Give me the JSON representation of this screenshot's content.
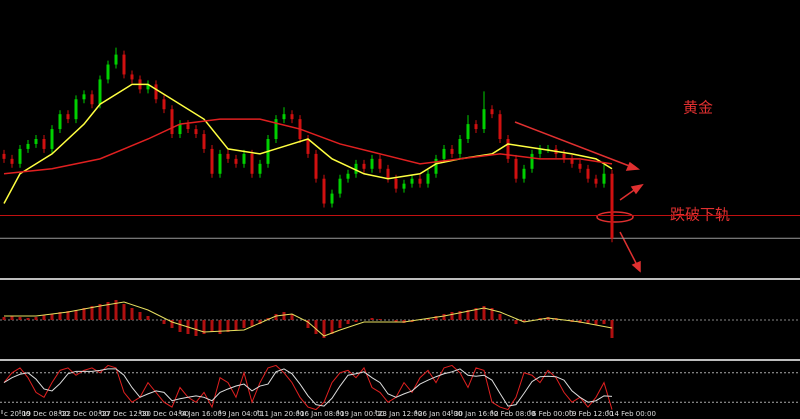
{
  "chart_data": [
    {
      "type": "candlestick",
      "up_color": "#00d000",
      "down_color": "#d01010",
      "xlim": [
        -0.5,
        99.5
      ],
      "ylim": [
        0,
        280
      ],
      "ohlc": [
        [
          125,
          129,
          116,
          120
        ],
        [
          120,
          124,
          111,
          115
        ],
        [
          115,
          134,
          111,
          130
        ],
        [
          130,
          139,
          126,
          135
        ],
        [
          135,
          144,
          131,
          140
        ],
        [
          140,
          144,
          126,
          130
        ],
        [
          130,
          154,
          126,
          150
        ],
        [
          150,
          169,
          146,
          165
        ],
        [
          165,
          169,
          156,
          160
        ],
        [
          160,
          184,
          156,
          180
        ],
        [
          180,
          189,
          176,
          185
        ],
        [
          185,
          189,
          171,
          175
        ],
        [
          175,
          204,
          171,
          200
        ],
        [
          200,
          219,
          196,
          215
        ],
        [
          215,
          232,
          211,
          225
        ],
        [
          225,
          229,
          201,
          205
        ],
        [
          205,
          209,
          196,
          200
        ],
        [
          200,
          204,
          186,
          190
        ],
        [
          190,
          199,
          186,
          195
        ],
        [
          195,
          199,
          176,
          180
        ],
        [
          180,
          184,
          166,
          170
        ],
        [
          170,
          174,
          141,
          145
        ],
        [
          145,
          159,
          141,
          155
        ],
        [
          155,
          159,
          146,
          150
        ],
        [
          150,
          154,
          141,
          145
        ],
        [
          145,
          149,
          126,
          130
        ],
        [
          130,
          134,
          101,
          105
        ],
        [
          105,
          129,
          101,
          125
        ],
        [
          125,
          129,
          116,
          120
        ],
        [
          120,
          124,
          111,
          115
        ],
        [
          115,
          129,
          111,
          125
        ],
        [
          125,
          129,
          101,
          105
        ],
        [
          105,
          119,
          101,
          115
        ],
        [
          115,
          144,
          111,
          140
        ],
        [
          140,
          164,
          136,
          160
        ],
        [
          160,
          172,
          156,
          165
        ],
        [
          165,
          169,
          156,
          160
        ],
        [
          160,
          164,
          136,
          140
        ],
        [
          140,
          144,
          121,
          125
        ],
        [
          125,
          129,
          96,
          100
        ],
        [
          100,
          104,
          71,
          75
        ],
        [
          75,
          89,
          71,
          85
        ],
        [
          85,
          104,
          81,
          100
        ],
        [
          100,
          109,
          96,
          105
        ],
        [
          105,
          119,
          101,
          115
        ],
        [
          115,
          119,
          106,
          110
        ],
        [
          110,
          124,
          106,
          120
        ],
        [
          120,
          124,
          106,
          110
        ],
        [
          110,
          114,
          96,
          100
        ],
        [
          100,
          104,
          86,
          90
        ],
        [
          90,
          99,
          86,
          95
        ],
        [
          95,
          104,
          91,
          100
        ],
        [
          100,
          104,
          91,
          95
        ],
        [
          95,
          109,
          91,
          105
        ],
        [
          105,
          124,
          101,
          120
        ],
        [
          120,
          134,
          116,
          130
        ],
        [
          130,
          134,
          121,
          125
        ],
        [
          125,
          144,
          121,
          140
        ],
        [
          140,
          164,
          136,
          155
        ],
        [
          155,
          159,
          146,
          150
        ],
        [
          150,
          188,
          146,
          170
        ],
        [
          170,
          174,
          161,
          165
        ],
        [
          165,
          169,
          136,
          140
        ],
        [
          140,
          144,
          116,
          120
        ],
        [
          120,
          124,
          96,
          100
        ],
        [
          100,
          114,
          96,
          110
        ],
        [
          110,
          129,
          106,
          125
        ],
        [
          125,
          134,
          121,
          130
        ],
        [
          130,
          134,
          126,
          130
        ],
        [
          130,
          134,
          121,
          125
        ],
        [
          125,
          129,
          116,
          120
        ],
        [
          120,
          124,
          111,
          115
        ],
        [
          115,
          119,
          106,
          110
        ],
        [
          110,
          114,
          96,
          100
        ],
        [
          100,
          104,
          91,
          95
        ],
        [
          95,
          114,
          91,
          105
        ],
        [
          105,
          109,
          36,
          40
        ]
      ],
      "lines": [
        {
          "color": "#ffff40",
          "x": [
            0,
            2,
            6,
            10,
            12,
            16,
            18,
            21,
            25,
            28,
            32,
            36,
            38,
            41,
            45,
            48,
            52,
            54,
            57,
            61,
            63,
            67,
            71,
            74,
            76
          ],
          "values": [
            75,
            105,
            125,
            155,
            175,
            195,
            195,
            180,
            160,
            130,
            125,
            135,
            140,
            120,
            105,
            100,
            105,
            115,
            120,
            125,
            135,
            130,
            125,
            120,
            110
          ]
        },
        {
          "color": "#e02020",
          "x": [
            0,
            6,
            12,
            18,
            22,
            27,
            32,
            37,
            42,
            47,
            52,
            57,
            62,
            67,
            72,
            76
          ],
          "values": [
            105,
            110,
            120,
            140,
            155,
            160,
            160,
            150,
            135,
            125,
            115,
            120,
            125,
            120,
            120,
            115
          ]
        }
      ],
      "levels": [
        {
          "color": "#c01010",
          "value": 63
        },
        {
          "color": "#9a9a9a",
          "value": 40
        }
      ],
      "annotations": [
        "黄金",
        "跌破下轨"
      ]
    },
    {
      "type": "macd",
      "color": "#b01010",
      "xlim": [
        -0.5,
        99.5
      ],
      "ylim": [
        -38,
        37
      ],
      "levels": [
        0
      ],
      "values": [
        3,
        4,
        3,
        2,
        3,
        5,
        6,
        8,
        9,
        10,
        12,
        14,
        16,
        18,
        20,
        16,
        12,
        8,
        4,
        0,
        -4,
        -8,
        -12,
        -14,
        -16,
        -14,
        -12,
        -14,
        -12,
        -10,
        -8,
        -6,
        -4,
        2,
        6,
        8,
        6,
        0,
        -8,
        -14,
        -18,
        -14,
        -8,
        -4,
        -2,
        0,
        2,
        1,
        0,
        -2,
        -3,
        -2,
        0,
        2,
        4,
        6,
        8,
        9,
        10,
        12,
        14,
        12,
        6,
        0,
        -4,
        -2,
        0,
        2,
        3,
        2,
        0,
        -2,
        -3,
        -4,
        -5,
        -4,
        -18
      ],
      "signal": {
        "color": "#e8e060",
        "x": [
          0,
          4,
          8,
          12,
          15,
          18,
          21,
          25,
          30,
          34,
          36,
          38,
          40,
          42,
          45,
          50,
          55,
          60,
          62,
          65,
          68,
          72,
          76
        ],
        "values": [
          4,
          4,
          8,
          14,
          18,
          10,
          -2,
          -12,
          -10,
          4,
          6,
          -2,
          -16,
          -10,
          -2,
          -2,
          4,
          12,
          8,
          -2,
          2,
          -2,
          -8
        ]
      }
    },
    {
      "type": "stochastic",
      "xlim": [
        -0.5,
        99.5
      ],
      "ylim": [
        0,
        100
      ],
      "levels": [
        80,
        20
      ],
      "series": [
        {
          "color": "#e02020",
          "values": [
            60,
            80,
            90,
            70,
            40,
            30,
            60,
            85,
            90,
            75,
            85,
            90,
            80,
            95,
            90,
            40,
            20,
            30,
            60,
            40,
            20,
            10,
            50,
            30,
            20,
            40,
            10,
            70,
            60,
            30,
            80,
            20,
            60,
            90,
            95,
            80,
            60,
            30,
            10,
            5,
            20,
            60,
            80,
            85,
            70,
            90,
            50,
            40,
            20,
            30,
            60,
            40,
            70,
            85,
            60,
            90,
            95,
            80,
            50,
            90,
            85,
            20,
            10,
            5,
            30,
            80,
            75,
            60,
            85,
            70,
            40,
            20,
            30,
            10,
            30,
            60,
            5
          ]
        },
        {
          "color": "#dddddd",
          "values": [
            60,
            70,
            77,
            80,
            67,
            47,
            43,
            58,
            78,
            83,
            83,
            83,
            85,
            88,
            88,
            75,
            50,
            30,
            37,
            43,
            40,
            23,
            27,
            30,
            33,
            30,
            23,
            40,
            47,
            53,
            57,
            43,
            53,
            57,
            82,
            88,
            78,
            57,
            33,
            15,
            12,
            28,
            53,
            75,
            78,
            82,
            70,
            60,
            37,
            30,
            37,
            43,
            57,
            65,
            72,
            78,
            82,
            88,
            75,
            73,
            75,
            65,
            38,
            12,
            15,
            38,
            62,
            72,
            73,
            72,
            65,
            43,
            30,
            20,
            23,
            33,
            32
          ]
        }
      ],
      "xticks": [
        {
          "value": -0.25,
          "label": "c 20:00"
        },
        {
          "value": 2,
          "label": "19 Dec 08:00"
        },
        {
          "value": 7,
          "label": "22 Dec 00:00"
        },
        {
          "value": 12,
          "label": "27 Dec 12:00"
        },
        {
          "value": 17,
          "label": "30 Dec 04:00"
        },
        {
          "value": 22,
          "label": "4 Jan 16:00"
        },
        {
          "value": 27,
          "label": "9 Jan 04:00"
        },
        {
          "value": 31.75,
          "label": "11 Jan 20:00"
        },
        {
          "value": 36.75,
          "label": "16 Jan 08:00"
        },
        {
          "value": 41.75,
          "label": "19 Jan 00:00"
        },
        {
          "value": 46.5,
          "label": "23 Jan 12:00"
        },
        {
          "value": 51.5,
          "label": "26 Jan 04:00"
        },
        {
          "value": 56,
          "label": "30 Jan 16:00"
        },
        {
          "value": 61,
          "label": "2 Feb 08:00"
        },
        {
          "value": 65.75,
          "label": "6 Feb 00:00"
        },
        {
          "value": 70.75,
          "label": "9 Feb 12:00"
        },
        {
          "value": 75.5,
          "label": "14 Feb 00:00"
        }
      ]
    }
  ]
}
